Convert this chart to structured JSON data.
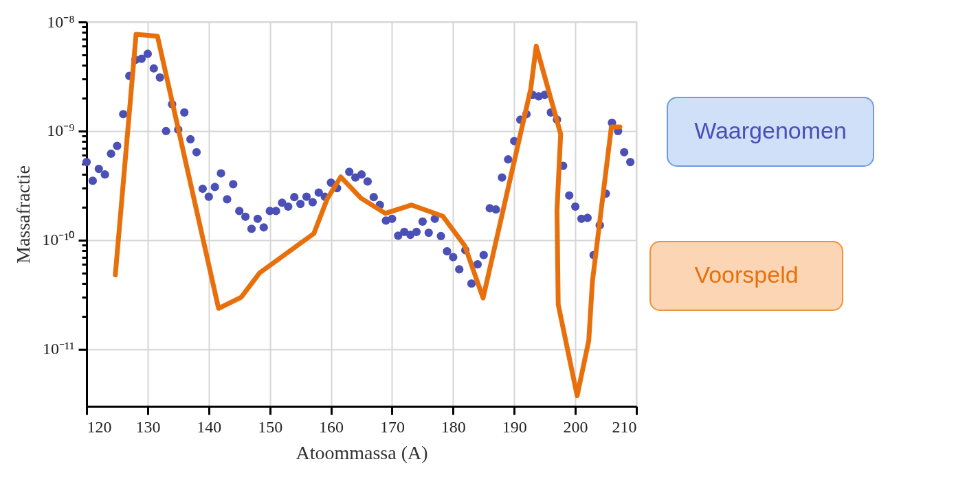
{
  "chart_data": {
    "type": "scatter",
    "xlabel": "Atoommassa (A)",
    "ylabel": "Massafractie",
    "xlim": [
      120,
      210
    ],
    "xticks": [
      120,
      130,
      140,
      150,
      160,
      170,
      180,
      190,
      200,
      210
    ],
    "log": "y",
    "ylim": [
      3e-12,
      1e-08
    ],
    "yticks": [
      {
        "value": 1e-11,
        "label": "10⁻¹¹"
      },
      {
        "value": 2e-11,
        "label": null
      },
      {
        "value": 3e-11,
        "label": null
      },
      {
        "value": 4e-11,
        "label": null
      },
      {
        "value": 5e-11,
        "label": null
      },
      {
        "value": 6e-11,
        "label": null
      },
      {
        "value": 7e-11,
        "label": null
      },
      {
        "value": 8e-11,
        "label": null
      },
      {
        "value": 9e-11,
        "label": null
      },
      {
        "value": 1e-10,
        "label": "10⁻¹⁰"
      },
      {
        "value": 2e-10,
        "label": null
      },
      {
        "value": 3e-10,
        "label": null
      },
      {
        "value": 4e-10,
        "label": null
      },
      {
        "value": 5e-10,
        "label": null
      },
      {
        "value": 6e-10,
        "label": null
      },
      {
        "value": 7e-10,
        "label": null
      },
      {
        "value": 8e-10,
        "label": null
      },
      {
        "value": 9e-10,
        "label": null
      },
      {
        "value": 1e-09,
        "label": "10⁻⁹"
      },
      {
        "value": 2e-09,
        "label": null
      },
      {
        "value": 3e-09,
        "label": null
      },
      {
        "value": 4e-09,
        "label": null
      },
      {
        "value": 5e-09,
        "label": null
      },
      {
        "value": 6e-09,
        "label": null
      },
      {
        "value": 7e-09,
        "label": null
      },
      {
        "value": 8e-09,
        "label": null
      },
      {
        "value": 9e-09,
        "label": null
      },
      {
        "value": 1e-08,
        "label": "10⁻⁸"
      }
    ],
    "grid": true,
    "legend": false,
    "marker": "circle",
    "series": [
      {
        "name": "Waargenomen",
        "color": "#4a50b5",
        "x": [
          120,
          121,
          122,
          123,
          124,
          125,
          126,
          127,
          128,
          129,
          130,
          131,
          132,
          133,
          134,
          135,
          136,
          137,
          138,
          139,
          140,
          141,
          142,
          143,
          144,
          145,
          146,
          147,
          148,
          149,
          150,
          151,
          152,
          153,
          154,
          155,
          156,
          157,
          158,
          159,
          160,
          161,
          163,
          164,
          165,
          166,
          167,
          168,
          169,
          170,
          171,
          172,
          173,
          174,
          175,
          176,
          177,
          178,
          179,
          180,
          181,
          182,
          183,
          184,
          185,
          186,
          187,
          188,
          189,
          190,
          191,
          192,
          193,
          194,
          195,
          196,
          197,
          198,
          199,
          200,
          201,
          202,
          203,
          204,
          205,
          206,
          207,
          208,
          209
        ],
        "values": [
          5.2e-10,
          3.5e-10,
          4.5e-10,
          4e-10,
          6.2e-10,
          7.3e-10,
          1.43e-09,
          3.2e-09,
          4.5e-09,
          4.6e-09,
          5.1e-09,
          3.75e-09,
          3.1e-09,
          1e-09,
          1.76e-09,
          1.03e-09,
          1.48e-09,
          8.4e-10,
          6.4e-10,
          2.96e-10,
          2.5e-10,
          3.07e-10,
          4.1e-10,
          2.37e-10,
          3.26e-10,
          1.85e-10,
          1.64e-10,
          1.27e-10,
          1.57e-10,
          1.31e-10,
          1.85e-10,
          1.85e-10,
          2.2e-10,
          2.03e-10,
          2.48e-10,
          2.15e-10,
          2.5e-10,
          2.23e-10,
          2.73e-10,
          2.5e-10,
          3.37e-10,
          3e-10,
          4.23e-10,
          3.75e-10,
          4e-10,
          3.45e-10,
          2.48e-10,
          2.1e-10,
          1.51e-10,
          1.57e-10,
          1.1e-10,
          1.19e-10,
          1.12e-10,
          1.19e-10,
          1.48e-10,
          1.17e-10,
          1.57e-10,
          1.09e-10,
          7.9e-11,
          7e-11,
          5.4e-11,
          8.1e-11,
          4e-11,
          6e-11,
          7.3e-11,
          1.96e-10,
          1.91e-10,
          3.75e-10,
          5.5e-10,
          8.1e-10,
          1.27e-09,
          1.43e-09,
          2.15e-09,
          2.08e-09,
          2.15e-09,
          1.48e-09,
          1.27e-09,
          4.8e-10,
          2.57e-10,
          2.03e-10,
          1.57e-10,
          1.6e-10,
          7.3e-11,
          1.37e-10,
          2.67e-10,
          1.19e-09,
          1e-09,
          6.4e-10,
          5.2e-10
        ]
      },
      {
        "name": "Voorspeld",
        "type": "line",
        "color": "#e8700c",
        "marker": "none",
        "line_style": "solid",
        "x": [
          124.7,
          128.1,
          131.6,
          141.6,
          145.3,
          148.3,
          157.2,
          159.4,
          161.6,
          164.9,
          168.9,
          173.2,
          178.3,
          181.9,
          184.9,
          192.7,
          193.6,
          197.6,
          197.0,
          197.2,
          200.3,
          202.2,
          202.8,
          205.9,
          207.3
        ],
        "values": [
          4.8e-11,
          7.7e-09,
          7.4e-09,
          2.37e-11,
          3e-11,
          5e-11,
          1.15e-10,
          2.4e-10,
          3.8e-10,
          2.43e-10,
          1.76e-10,
          2.1e-10,
          1.66e-10,
          8.9e-11,
          2.95e-11,
          2.43e-09,
          6e-09,
          9.4e-10,
          1.87e-10,
          2.57e-11,
          3.75e-12,
          1.2e-11,
          4.2e-11,
          1.09e-09,
          1.09e-09
        ]
      }
    ]
  }
}
